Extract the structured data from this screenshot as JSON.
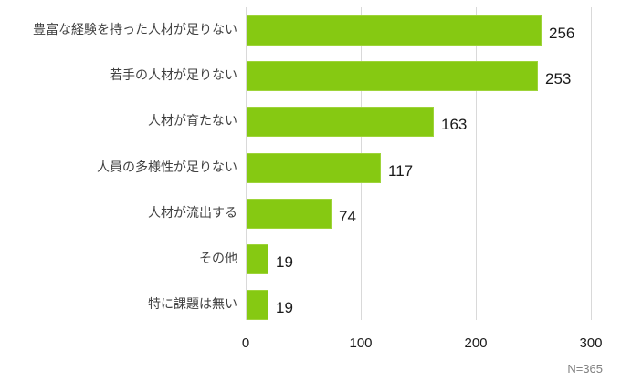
{
  "chart_data": {
    "type": "bar",
    "orientation": "horizontal",
    "title": "",
    "xlabel": "",
    "ylabel": "",
    "categories": [
      "豊富な経験を持った人材が足りない",
      "若手の人材が足りない",
      "人材が育たない",
      "人員の多様性が足りない",
      "人材が流出する",
      "その他",
      "特に課題は無い"
    ],
    "values": [
      256,
      253,
      163,
      117,
      74,
      19,
      19
    ],
    "xlim": [
      0,
      300
    ],
    "x_ticks": [
      0,
      100,
      200,
      300
    ],
    "grid": "vertical",
    "legend": "none",
    "data_labels": true,
    "bar_color": "#86c912",
    "note": "N=365"
  }
}
